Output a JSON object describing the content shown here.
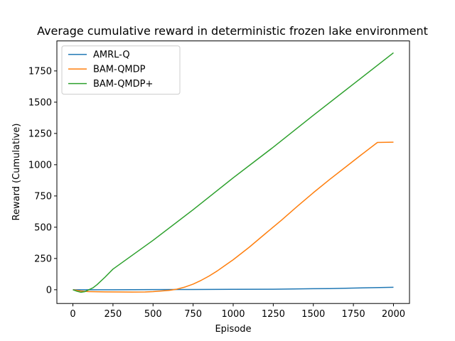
{
  "chart_data": {
    "type": "line",
    "title": "Average cumulative reward in deterministic frozen lake environment",
    "xlabel": "Episode",
    "ylabel": "Reward (Cumulative)",
    "xlim": [
      -100,
      2100
    ],
    "ylim": [
      -110,
      1990
    ],
    "xticks": [
      0,
      250,
      500,
      750,
      1000,
      1250,
      1500,
      1750,
      2000
    ],
    "yticks": [
      0,
      250,
      500,
      750,
      1000,
      1250,
      1500,
      1750
    ],
    "grid": false,
    "legend_position": "top-left",
    "series": [
      {
        "name": "AMRL-Q",
        "color": "#1f77b4",
        "x": [
          0,
          250,
          500,
          750,
          1000,
          1250,
          1500,
          1600,
          1750,
          2000
        ],
        "y": [
          0,
          0,
          1,
          2,
          3,
          4,
          8,
          9,
          13,
          20
        ]
      },
      {
        "name": "BAM-QMDP",
        "color": "#ff7f0e",
        "x": [
          0,
          50,
          100,
          200,
          300,
          370,
          450,
          500,
          550,
          600,
          650,
          700,
          750,
          800,
          850,
          900,
          950,
          1000,
          1100,
          1200,
          1300,
          1400,
          1500,
          1600,
          1700,
          1800,
          1900,
          2000
        ],
        "y": [
          0,
          -10,
          -15,
          -17,
          -18,
          -19,
          -18,
          -15,
          -10,
          -5,
          5,
          22,
          45,
          75,
          110,
          150,
          195,
          240,
          340,
          448,
          555,
          667,
          776,
          880,
          980,
          1080,
          1178,
          1180
        ],
        "y_note_removed": true
      },
      {
        "name": "BAM-QMDP+",
        "color": "#2ca02c",
        "x": [
          0,
          25,
          50,
          75,
          100,
          125,
          150,
          200,
          250,
          500,
          750,
          1000,
          1250,
          1500,
          1750,
          2000
        ],
        "y": [
          0,
          -12,
          -20,
          -15,
          0,
          15,
          40,
          100,
          165,
          395,
          640,
          895,
          1140,
          1395,
          1645,
          1895
        ]
      }
    ]
  }
}
